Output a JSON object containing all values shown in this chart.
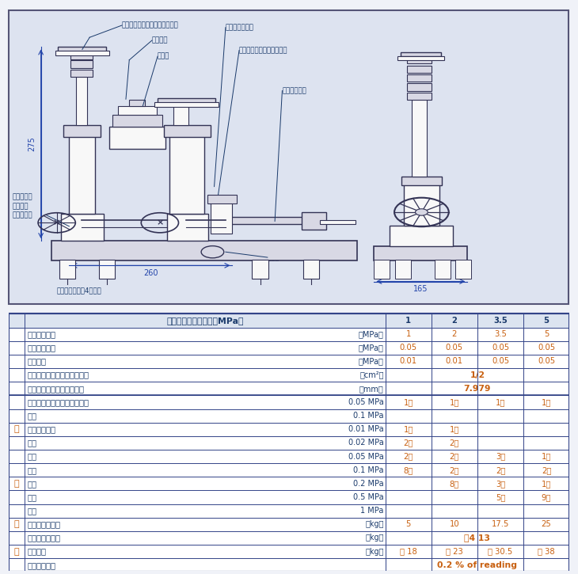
{
  "bg_color": "#e8eaf0",
  "table_bg": "#ffffff",
  "header_bg": "#dde3f0",
  "border_color": "#2c4a8a",
  "text_color": "#1a3a6b",
  "orange_color": "#c8600a",
  "diagram_bg": "#dde3f0",
  "dim_275": "275",
  "dim_260": "260",
  "dim_165": "165",
  "row_defs": [
    {
      "pre": "",
      "label": "圧　　　　力",
      "unit": "（MPa）",
      "c1": "1",
      "c2": "2",
      "c3": "3.5",
      "c4": "5",
      "hdr": true,
      "span": false,
      "bold": true
    },
    {
      "pre": "",
      "label": "最大測定圧力",
      "unit": "（MPa）",
      "c1": "1",
      "c2": "2",
      "c3": "3.5",
      "c4": "5",
      "hdr": false,
      "span": false,
      "bold": true
    },
    {
      "pre": "",
      "label": "最小測定圧力",
      "unit": "（MPa）",
      "c1": "0.05",
      "c2": "0.05",
      "c3": "0.05",
      "c4": "0.05",
      "hdr": false,
      "span": false,
      "bold": true
    },
    {
      "pre": "",
      "label": "最小区分",
      "unit": "（MPa）",
      "c1": "0.01",
      "c2": "0.01",
      "c3": "0.05",
      "c4": "0.05",
      "hdr": false,
      "span": false,
      "bold": true
    },
    {
      "pre": "",
      "label": "ピストン・シリンダの断面積",
      "unit": "（cm²）",
      "c1": "1/2",
      "c2": "",
      "c3": "",
      "c4": "",
      "hdr": false,
      "span": true,
      "bold": true
    },
    {
      "pre": "",
      "label": "ピストン・シリンダの直径",
      "unit": "（mm）",
      "c1": "7.979",
      "c2": "",
      "c3": "",
      "c4": "",
      "hdr": false,
      "span": true,
      "bold": true
    },
    {
      "pre": "",
      "label": "　ピストン・シリンダ表示量",
      "unit": "0.05 MPa",
      "c1": "1個",
      "c2": "1個",
      "c3": "1個",
      "c4": "1個",
      "hdr": false,
      "span": false,
      "bold": false
    },
    {
      "pre": "",
      "label": "　《",
      "unit": "0.1 MPa",
      "c1": "",
      "c2": "",
      "c3": "",
      "c4": "",
      "hdr": false,
      "span": false,
      "bold": false
    },
    {
      "pre": "重",
      "label": "　重錘表示量",
      "unit": "0.01 MPa",
      "c1": "1個",
      "c2": "1個",
      "c3": "",
      "c4": "",
      "hdr": false,
      "span": false,
      "bold": false
    },
    {
      "pre": "",
      "label": "　《",
      "unit": "0.02 MPa",
      "c1": "2個",
      "c2": "2個",
      "c3": "",
      "c4": "",
      "hdr": false,
      "span": false,
      "bold": false
    },
    {
      "pre": "",
      "label": "　《",
      "unit": "0.05 MPa",
      "c1": "2個",
      "c2": "2個",
      "c3": "3個",
      "c4": "1個",
      "hdr": false,
      "span": false,
      "bold": false
    },
    {
      "pre": "",
      "label": "　《",
      "unit": "0.1 MPa",
      "c1": "8個",
      "c2": "2個",
      "c3": "2個",
      "c4": "2個",
      "hdr": false,
      "span": false,
      "bold": false
    },
    {
      "pre": "錘",
      "label": "　《",
      "unit": "0.2 MPa",
      "c1": "",
      "c2": "8個",
      "c3": "3個",
      "c4": "1個",
      "hdr": false,
      "span": false,
      "bold": false
    },
    {
      "pre": "",
      "label": "　《",
      "unit": "0.5 MPa",
      "c1": "",
      "c2": "",
      "c3": "5個",
      "c4": "9個",
      "hdr": false,
      "span": false,
      "bold": false
    },
    {
      "pre": "",
      "label": "　《",
      "unit": "1 MPa",
      "c1": "",
      "c2": "",
      "c3": "",
      "c4": "",
      "hdr": false,
      "span": false,
      "bold": false
    },
    {
      "pre": "重",
      "label": "　重錘の総質量",
      "unit": "（kg）",
      "c1": "5",
      "c2": "10",
      "c3": "17.5",
      "c4": "25",
      "hdr": false,
      "span": false,
      "bold": false
    },
    {
      "pre": "",
      "label": "　本体の総質量",
      "unit": "（kg）",
      "c1": "約4 13",
      "c2": "",
      "c3": "",
      "c4": "",
      "hdr": false,
      "span": true,
      "bold": false
    },
    {
      "pre": "量",
      "label": "　総質量",
      "unit": "（kg）",
      "c1": "約 18",
      "c2": "約 23",
      "c3": "約 30.5",
      "c4": "約 38",
      "hdr": false,
      "span": false,
      "bold": false
    },
    {
      "pre": "",
      "label": "精　　　　度",
      "unit": "",
      "c1": "0.2 % of reading",
      "c2": "",
      "c3": "",
      "c4": "",
      "hdr": false,
      "span": true,
      "bold": true
    }
  ]
}
